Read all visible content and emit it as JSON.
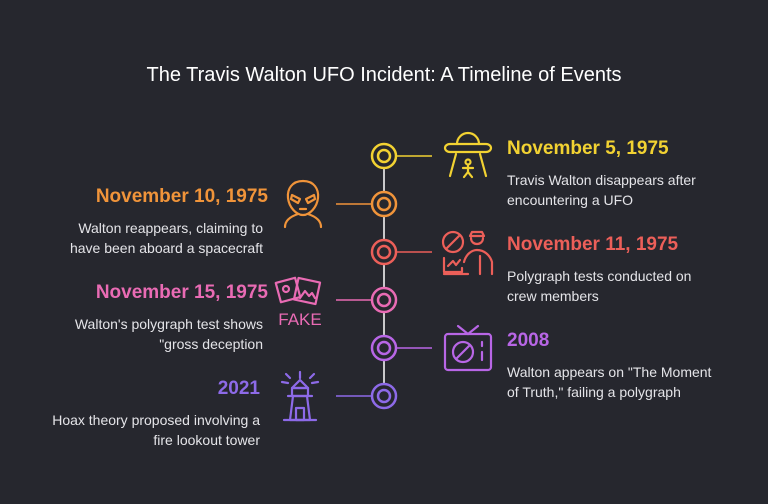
{
  "title": "The Travis Walton UFO Incident: A Timeline of Events",
  "colors": {
    "yellow": "#f2d232",
    "orange": "#f0943a",
    "red": "#ec5f59",
    "pink": "#e96bb4",
    "purple": "#b866e6",
    "violet": "#8d6ae8"
  },
  "events": [
    {
      "date": "November 5, 1975",
      "desc": [
        "Travis Walton disappears after",
        "encountering a UFO"
      ],
      "icon": "ufo-icon"
    },
    {
      "date": "November 10, 1975",
      "desc": [
        "Walton reappears, claiming to",
        "have been aboard a spacecraft"
      ],
      "icon": "alien-icon"
    },
    {
      "date": "November 11, 1975",
      "desc": [
        "Polygraph tests conducted on",
        "crew members"
      ],
      "icon": "polygraph-examiner-icon"
    },
    {
      "date": "November 15, 1975",
      "desc": [
        "Walton's polygraph test shows",
        "\"gross deception"
      ],
      "icon": "fake-photos-icon",
      "icon_text": "FAKE"
    },
    {
      "date": "2008",
      "desc": [
        "Walton appears on \"The Moment",
        "of Truth,\" failing a polygraph"
      ],
      "icon": "banned-tv-icon"
    },
    {
      "date": "2021",
      "desc": [
        "Hoax theory proposed involving a",
        "fire lookout tower"
      ],
      "icon": "lookout-tower-icon"
    }
  ]
}
